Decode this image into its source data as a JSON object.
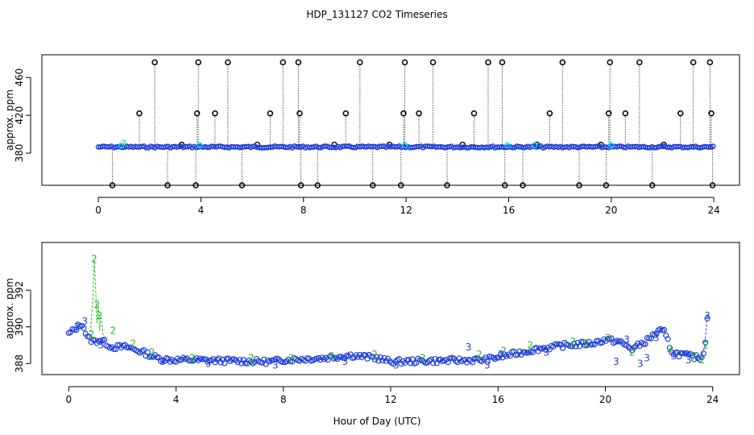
{
  "title": "HDP_131127  CO2 Timeseries",
  "xlabel": "Hour of Day (UTC)",
  "colors": {
    "black": "#000000",
    "cyan": "#00d0ff",
    "blue": "#1f3fd8",
    "green": "#22bb22"
  },
  "chart_data": [
    {
      "type": "scatter",
      "panel": "top",
      "ylabel": "approx. ppm",
      "xlim": [
        -2.2,
        25
      ],
      "ylim": [
        346,
        484
      ],
      "xticks": [
        "0",
        "4",
        "8",
        "12",
        "16",
        "20",
        "24"
      ],
      "yticks": [
        "380",
        "420",
        "460"
      ],
      "baseline": 386.5,
      "spikes_high": [
        2.2,
        3.9,
        5.05,
        7.2,
        7.8,
        10.2,
        11.95,
        13.05,
        15.2,
        15.75,
        18.1,
        19.95,
        21.1,
        23.2,
        23.85
      ],
      "spikes_mid": [
        1.6,
        3.85,
        4.55,
        6.7,
        7.85,
        9.65,
        11.9,
        12.5,
        14.65,
        17.6,
        19.9,
        20.55,
        22.7,
        23.9
      ],
      "spikes_low": [
        0.55,
        2.7,
        3.8,
        5.6,
        7.9,
        8.55,
        10.7,
        11.8,
        13.6,
        15.85,
        16.55,
        18.75,
        19.8,
        21.6,
        23.95
      ],
      "low_blips": [
        3.25,
        6.2,
        9.2,
        11.35,
        14.2,
        17.1,
        19.6,
        22.05
      ],
      "level_high": 476,
      "level_mid": 422,
      "level_low": 346
    },
    {
      "type": "scatter",
      "panel": "bottom",
      "ylabel": "approx. ppm",
      "xlim": [
        -1.0,
        25
      ],
      "ylim": [
        387.4,
        394.6
      ],
      "xticks": [
        "0",
        "4",
        "8",
        "12",
        "16",
        "20",
        "24"
      ],
      "yticks": [
        "388",
        "390",
        "392"
      ],
      "profile": [
        [
          0.0,
          389.6
        ],
        [
          0.5,
          390.2
        ],
        [
          0.7,
          389.4
        ],
        [
          0.95,
          389.2
        ],
        [
          1.2,
          389.3
        ],
        [
          1.6,
          388.9
        ],
        [
          2.2,
          388.9
        ],
        [
          2.8,
          388.6
        ],
        [
          3.3,
          388.3
        ],
        [
          3.8,
          388.2
        ],
        [
          4.5,
          388.2
        ],
        [
          6.0,
          388.15
        ],
        [
          7.5,
          388.1
        ],
        [
          8.0,
          388.2
        ],
        [
          9.5,
          388.3
        ],
        [
          10.5,
          388.45
        ],
        [
          11.5,
          388.3
        ],
        [
          12.0,
          388.1
        ],
        [
          13.5,
          388.15
        ],
        [
          15.5,
          388.2
        ],
        [
          16.5,
          388.5
        ],
        [
          17.5,
          388.8
        ],
        [
          18.5,
          389.0
        ],
        [
          19.5,
          389.1
        ],
        [
          20.0,
          389.3
        ],
        [
          20.5,
          389.2
        ],
        [
          21.0,
          388.8
        ],
        [
          21.5,
          389.2
        ],
        [
          22.0,
          389.8
        ],
        [
          22.2,
          389.7
        ],
        [
          22.5,
          388.6
        ],
        [
          23.5,
          388.3
        ],
        [
          23.7,
          388.6
        ],
        [
          23.8,
          390.6
        ]
      ],
      "label_2_points": [
        [
          0.95,
          393.7
        ],
        [
          1.05,
          391.2
        ],
        [
          1.15,
          390.6
        ],
        [
          1.65,
          389.8
        ],
        [
          0.85,
          389.6
        ],
        [
          2.4,
          389.1
        ],
        [
          3.1,
          388.6
        ],
        [
          6.8,
          388.3
        ],
        [
          8.3,
          388.3
        ],
        [
          11.4,
          388.5
        ],
        [
          15.3,
          388.5
        ],
        [
          17.2,
          389.0
        ],
        [
          18.8,
          389.2
        ],
        [
          20.1,
          389.4
        ],
        [
          21.0,
          388.6
        ],
        [
          22.4,
          388.8
        ],
        [
          23.3,
          388.4
        ],
        [
          23.6,
          388.2
        ],
        [
          23.75,
          389.0
        ],
        [
          4.6,
          388.3
        ],
        [
          9.8,
          388.4
        ],
        [
          13.2,
          388.3
        ],
        [
          16.2,
          388.7
        ],
        [
          19.3,
          389.1
        ]
      ],
      "label_3_points": [
        [
          0.3,
          390.0
        ],
        [
          0.6,
          390.3
        ],
        [
          1.2,
          389.0
        ],
        [
          3.5,
          388.1
        ],
        [
          7.7,
          387.9
        ],
        [
          12.2,
          387.9
        ],
        [
          14.9,
          388.9
        ],
        [
          15.6,
          387.9
        ],
        [
          16.1,
          388.5
        ],
        [
          20.4,
          388.1
        ],
        [
          20.8,
          389.3
        ],
        [
          21.3,
          388.0
        ],
        [
          21.55,
          388.3
        ],
        [
          21.9,
          389.4
        ],
        [
          22.55,
          388.4
        ],
        [
          23.1,
          388.2
        ],
        [
          23.8,
          390.6
        ],
        [
          5.2,
          388.0
        ],
        [
          10.3,
          388.1
        ],
        [
          17.8,
          388.6
        ]
      ]
    }
  ]
}
